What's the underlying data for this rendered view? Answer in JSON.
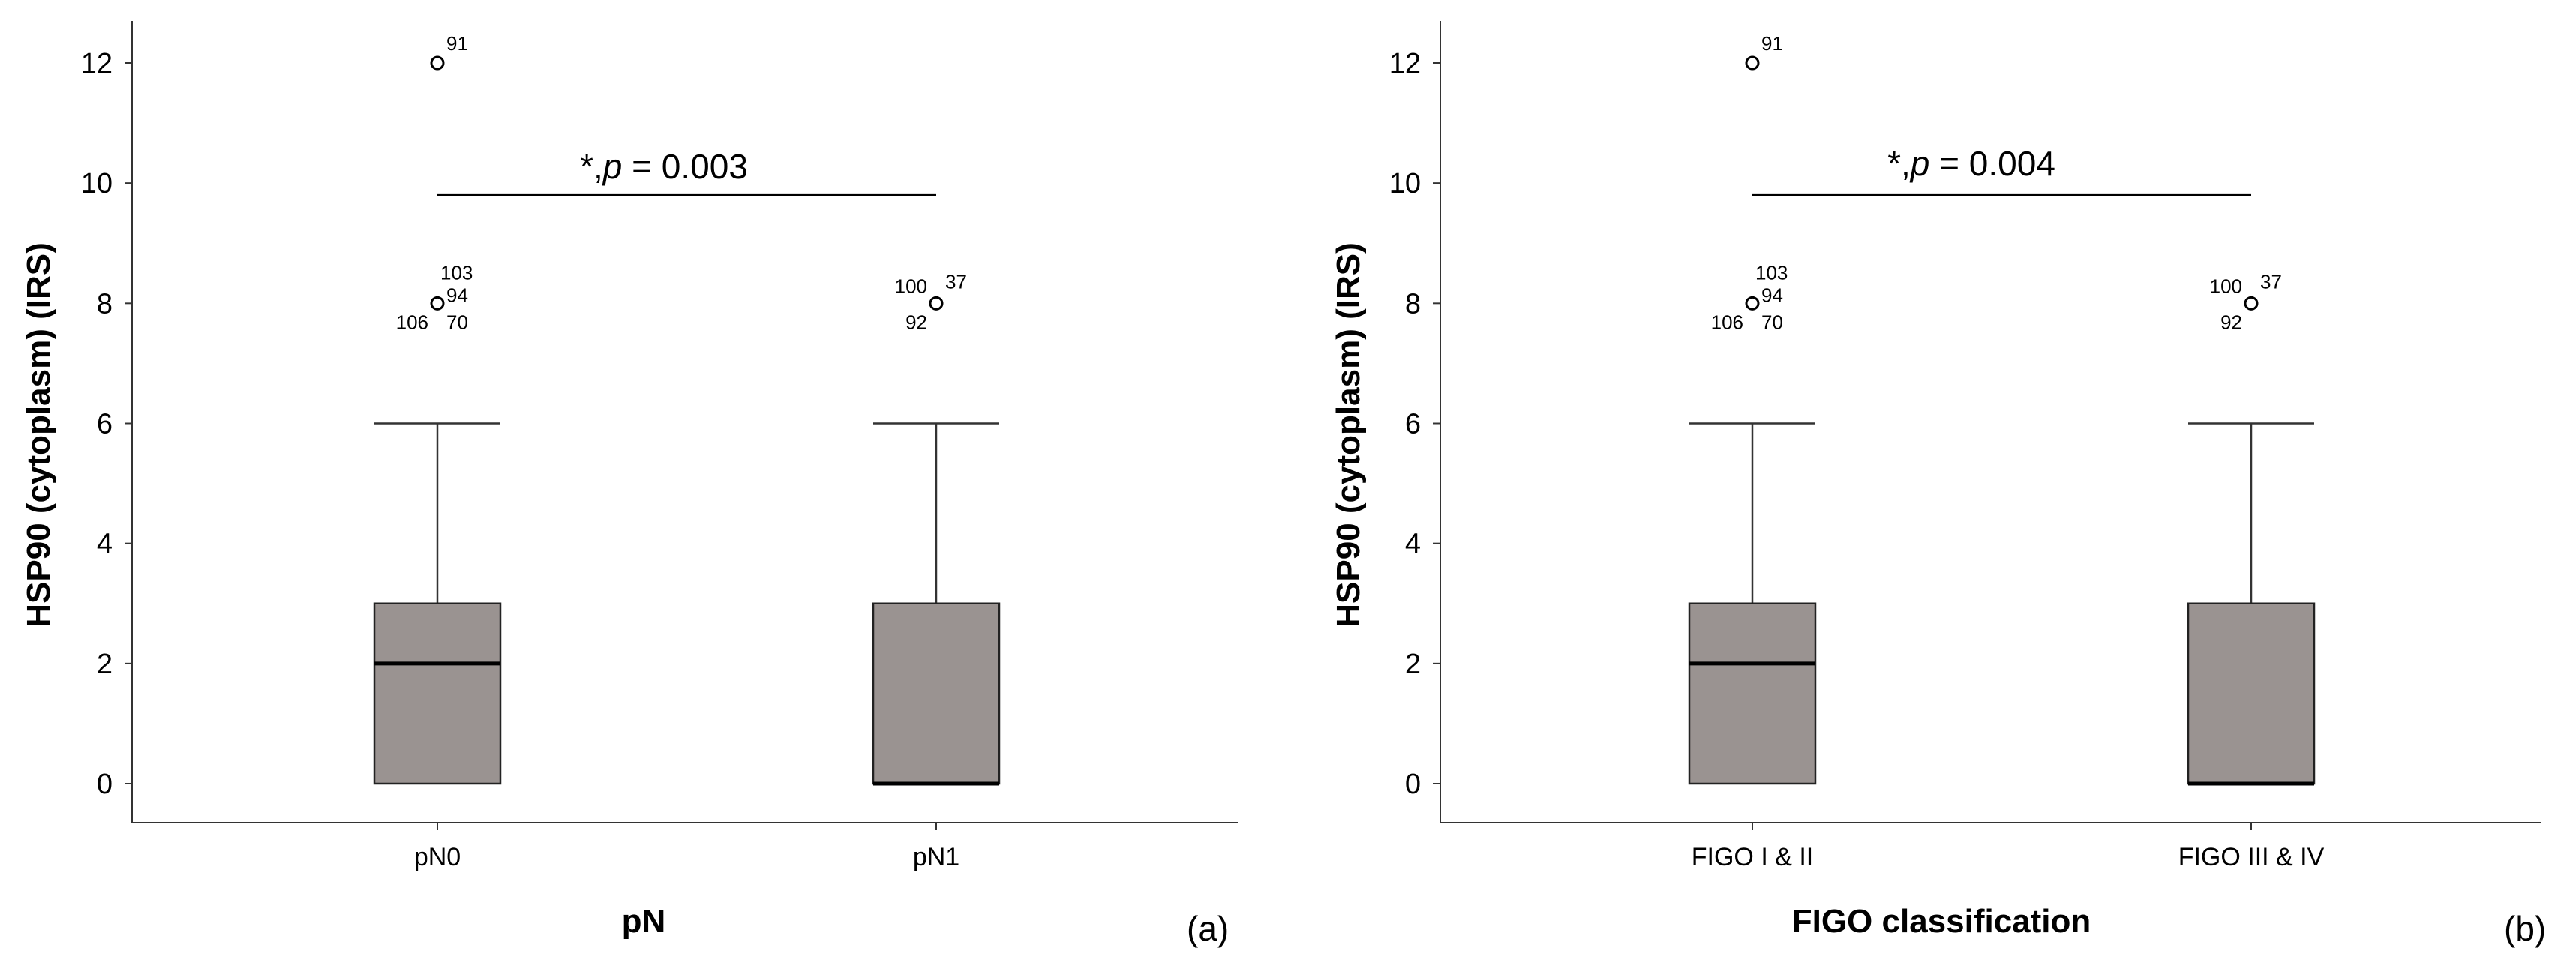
{
  "chart_data": [
    {
      "type": "boxplot",
      "panel_label": "(a)",
      "xlabel": "pN",
      "ylabel": "HSP90 (cytoplasm) (IRS)",
      "ylim": [
        -0.6,
        12.7
      ],
      "yticks": [
        "0",
        "2",
        "4",
        "6",
        "8",
        "10",
        "12"
      ],
      "categories": [
        "pN0",
        "pN1"
      ],
      "boxes": [
        {
          "category": "pN0",
          "whisker_low": 0,
          "q1": 0,
          "median": 2,
          "q3": 3,
          "whisker_high": 6,
          "outliers": [
            {
              "value": 12,
              "labels": [
                "91"
              ]
            },
            {
              "value": 8,
              "labels": [
                "103",
                "94",
                "106",
                "70"
              ]
            }
          ]
        },
        {
          "category": "pN1",
          "whisker_low": 0,
          "q1": 0,
          "median": 0,
          "q3": 3,
          "whisker_high": 6,
          "outliers": [
            {
              "value": 8,
              "labels": [
                "100",
                "37",
                "92"
              ]
            }
          ]
        }
      ],
      "significance": {
        "label_prefix": "*,",
        "label_p": "p",
        "label_value": " = 0.003",
        "y": 9.8
      }
    },
    {
      "type": "boxplot",
      "panel_label": "(b)",
      "xlabel": "FIGO classification",
      "ylabel": "HSP90 (cytoplasm) (IRS)",
      "ylim": [
        -0.6,
        12.7
      ],
      "yticks": [
        "0",
        "2",
        "4",
        "6",
        "8",
        "10",
        "12"
      ],
      "categories": [
        "FIGO I & II",
        "FIGO III & IV"
      ],
      "boxes": [
        {
          "category": "FIGO I & II",
          "whisker_low": 0,
          "q1": 0,
          "median": 2,
          "q3": 3,
          "whisker_high": 6,
          "outliers": [
            {
              "value": 12,
              "labels": [
                "91"
              ]
            },
            {
              "value": 8,
              "labels": [
                "103",
                "94",
                "106",
                "70"
              ]
            }
          ]
        },
        {
          "category": "FIGO III & IV",
          "whisker_low": 0,
          "q1": 0,
          "median": 0,
          "q3": 3,
          "whisker_high": 6,
          "outliers": [
            {
              "value": 8,
              "labels": [
                "100",
                "37",
                "92"
              ]
            }
          ]
        }
      ],
      "significance": {
        "label_prefix": "*,",
        "label_p": "p",
        "label_value": " = 0.004",
        "y": 9.8
      }
    }
  ]
}
